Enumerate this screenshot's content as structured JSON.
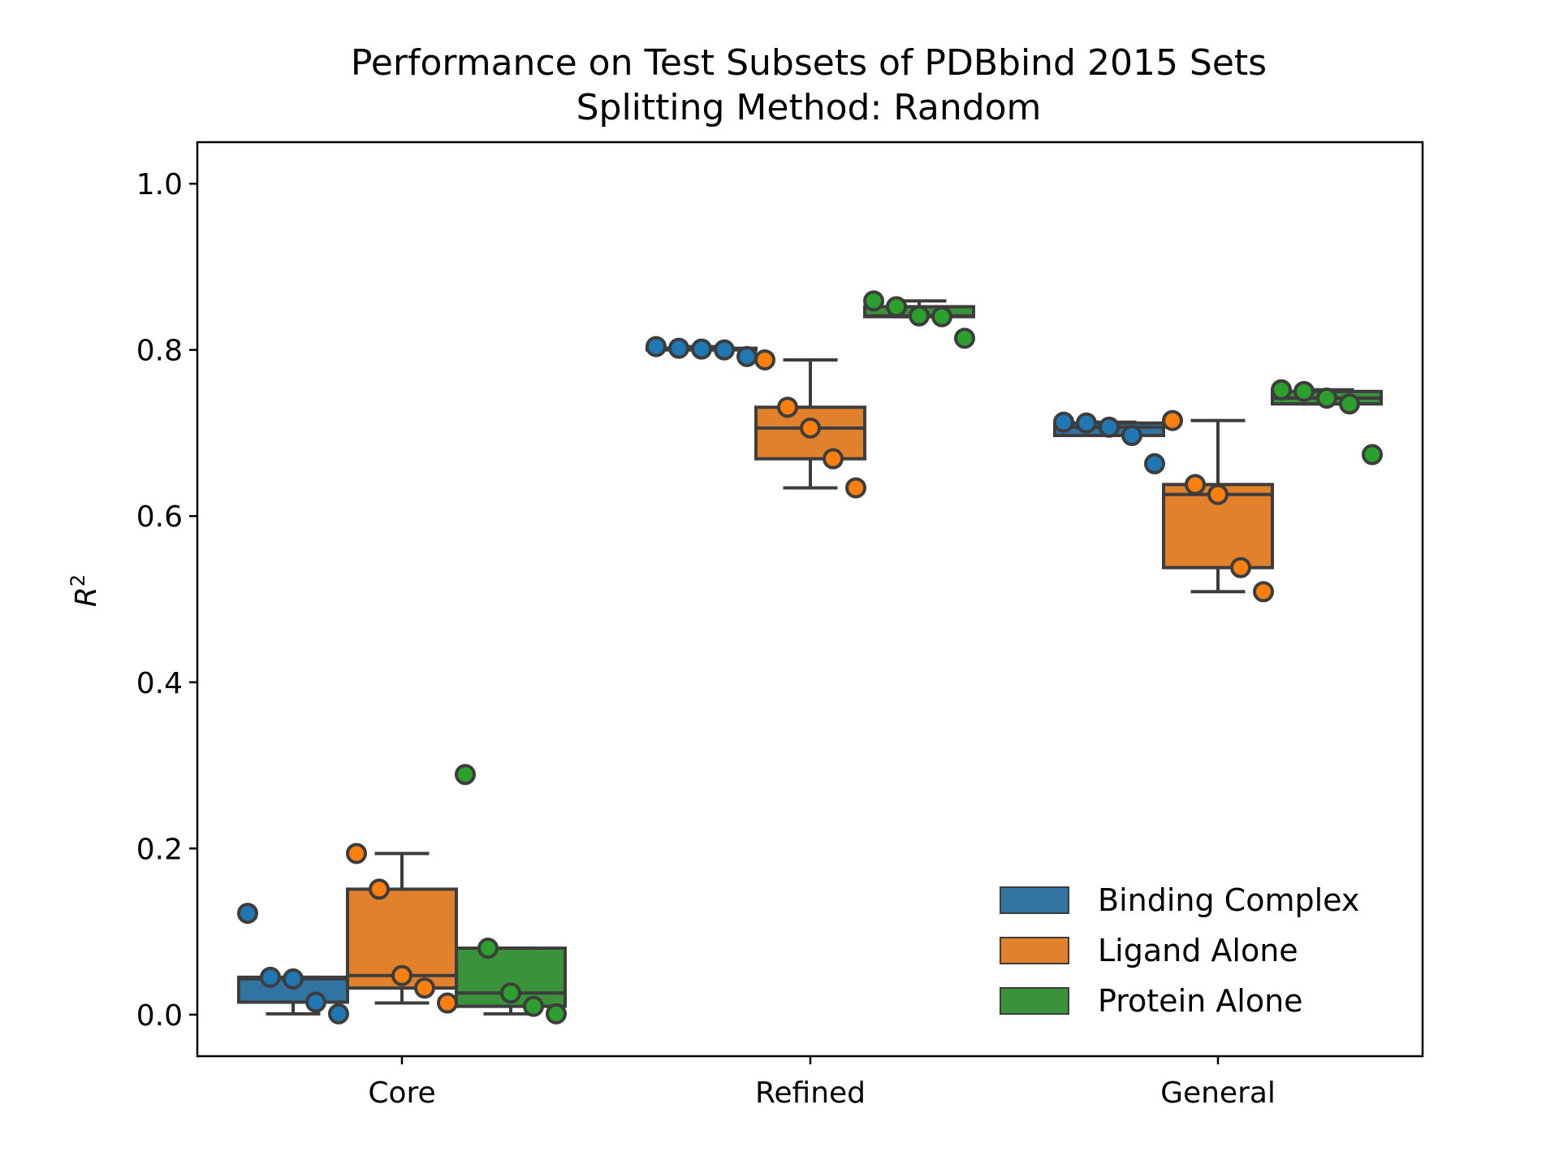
{
  "chart_data": {
    "type": "box",
    "title": "Performance on Test Subsets of PDBbind 2015 Sets",
    "subtitle": "Splitting Method: Random",
    "xlabel": "",
    "ylabel": "R",
    "ylabel_superscript": "2",
    "ylim": [
      -0.05,
      1.05
    ],
    "yticks": [
      "0.0",
      "0.2",
      "0.4",
      "0.6",
      "0.8",
      "1.0"
    ],
    "categories": [
      "Core",
      "Refined",
      "General"
    ],
    "legend_position": "lower-right",
    "grid": false,
    "series": [
      {
        "name": "Binding Complex",
        "color": "#1f77b4",
        "box_color": "#3274a1",
        "values": [
          [
            0.122,
            0.045,
            0.043,
            0.015,
            0.001
          ],
          [
            0.804,
            0.802,
            0.801,
            0.8,
            0.792
          ],
          [
            0.713,
            0.712,
            0.707,
            0.697,
            0.663
          ]
        ]
      },
      {
        "name": "Ligand Alone",
        "color": "#ff7f0e",
        "box_color": "#e1812c",
        "values": [
          [
            0.194,
            0.151,
            0.047,
            0.032,
            0.014
          ],
          [
            0.788,
            0.731,
            0.706,
            0.669,
            0.634
          ],
          [
            0.715,
            0.638,
            0.626,
            0.538,
            0.509
          ]
        ]
      },
      {
        "name": "Protein Alone",
        "color": "#2ca02c",
        "box_color": "#3a923a",
        "values": [
          [
            0.289,
            0.08,
            0.026,
            0.01,
            0.001
          ],
          [
            0.859,
            0.852,
            0.841,
            0.84,
            0.814
          ],
          [
            0.752,
            0.75,
            0.742,
            0.735,
            0.674
          ]
        ]
      }
    ]
  }
}
